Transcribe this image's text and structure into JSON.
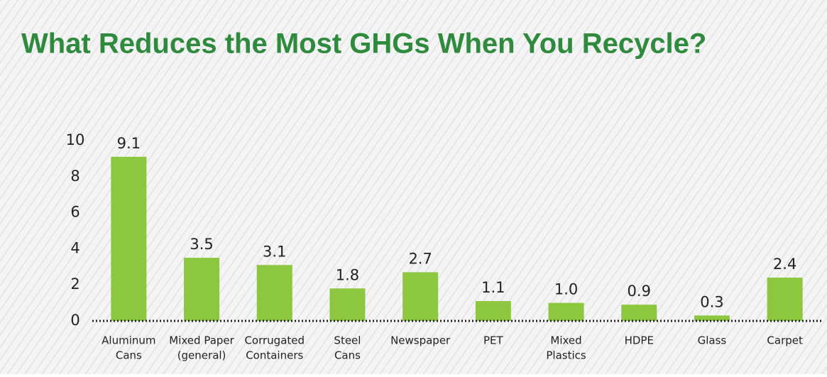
{
  "chart_data": {
    "type": "bar",
    "title": "What Reduces the Most GHGs When You Recycle?",
    "categories": [
      [
        "Aluminum",
        "Cans"
      ],
      [
        "Mixed Paper",
        "(general)"
      ],
      [
        "Corrugated",
        "Containers"
      ],
      [
        "Steel",
        "Cans"
      ],
      [
        "Newspaper"
      ],
      [
        "PET"
      ],
      [
        "Mixed",
        "Plastics"
      ],
      [
        "HDPE"
      ],
      [
        "Glass"
      ],
      [
        "Carpet"
      ]
    ],
    "values": [
      9.1,
      3.5,
      3.1,
      1.8,
      2.7,
      1.1,
      1.0,
      0.9,
      0.3,
      2.4
    ],
    "value_labels": [
      "9.1",
      "3.5",
      "3.1",
      "1.8",
      "2.7",
      "1.1",
      "1.0",
      "0.9",
      "0.3",
      "2.4"
    ],
    "color": "#8dc63f",
    "title_color": "#2e8b3e",
    "ylim": [
      0,
      10
    ],
    "yticks": [
      0,
      2,
      4,
      6,
      8,
      10
    ],
    "grid": false
  }
}
